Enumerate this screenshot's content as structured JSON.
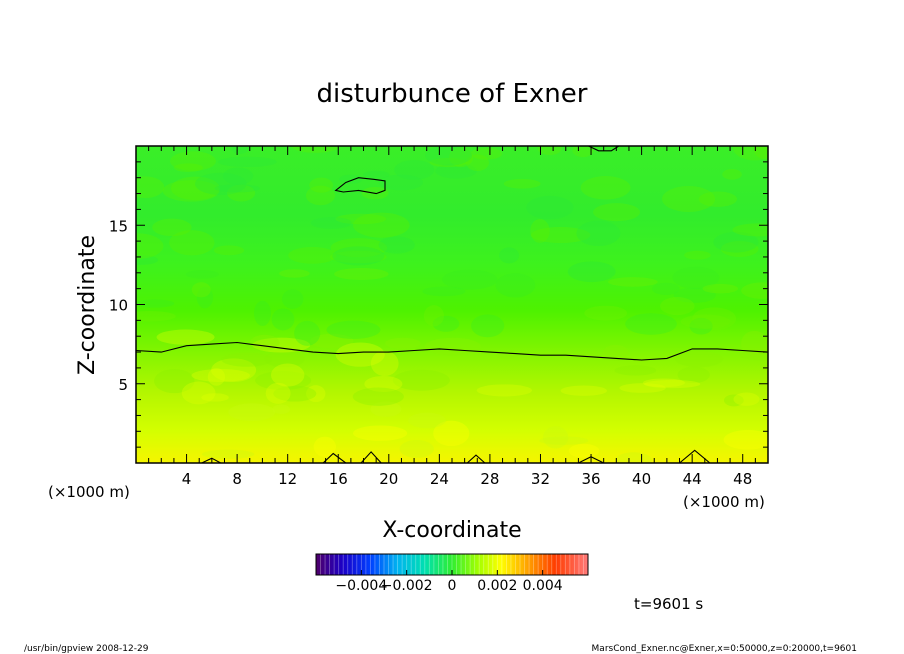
{
  "chart_data": {
    "type": "heatmap",
    "title": "disturbunce of Exner",
    "xlabel": "X-coordinate",
    "ylabel": "Z-coordinate",
    "x_unit_left": "(×1000 m)",
    "x_unit_right": "(×1000 m)",
    "xlim": [
      0,
      50
    ],
    "ylim": [
      0,
      20
    ],
    "x_ticks": [
      4,
      8,
      12,
      16,
      20,
      24,
      28,
      32,
      36,
      40,
      44,
      48
    ],
    "x_tick_labels": [
      "4",
      "8",
      "12",
      "16",
      "20",
      "24",
      "28",
      "32",
      "36",
      "40",
      "44",
      "48"
    ],
    "y_ticks": [
      5,
      10,
      15
    ],
    "y_tick_labels": [
      "5",
      "10",
      "15"
    ],
    "x_minor_step": 1,
    "y_minor_step": 1,
    "colorbar": {
      "min": -0.006,
      "max": 0.006,
      "tick_values": [
        -0.004,
        -0.002,
        0,
        0.002,
        0.004
      ],
      "tick_labels": [
        "−0.004",
        "−0.002",
        "0",
        "0.002",
        "0.004"
      ]
    },
    "contour_zero_line": {
      "x": [
        0,
        2,
        4,
        6,
        8,
        10,
        12,
        14,
        16,
        18,
        20,
        22,
        24,
        26,
        28,
        30,
        32,
        34,
        36,
        38,
        40,
        42,
        44,
        46,
        48,
        50
      ],
      "z": [
        7.1,
        7.0,
        7.4,
        7.5,
        7.6,
        7.4,
        7.2,
        7.0,
        6.9,
        7.0,
        7.0,
        7.1,
        7.2,
        7.1,
        7.0,
        6.9,
        6.8,
        6.8,
        6.7,
        6.6,
        6.5,
        6.6,
        7.2,
        7.2,
        7.1,
        7.0
      ]
    },
    "contour_upper_blob": {
      "x": [
        15.8,
        16.6,
        17.6,
        18.8,
        19.7,
        19.7,
        19.0,
        17.6,
        16.4,
        15.8
      ],
      "z": [
        17.2,
        17.7,
        18.0,
        17.9,
        17.8,
        17.2,
        17.0,
        17.2,
        17.1,
        17.2
      ]
    },
    "contour_top_arc": {
      "x": [
        35.8,
        36.6,
        37.6,
        38.2
      ],
      "z": [
        20.0,
        19.7,
        19.7,
        20.0
      ]
    },
    "contour_bottom_bumps": [
      {
        "x": [
          5.2,
          6.0,
          6.7
        ],
        "z": [
          0,
          0.3,
          0
        ]
      },
      {
        "x": [
          14.8,
          15.6,
          16.6
        ],
        "z": [
          0,
          0.6,
          0
        ]
      },
      {
        "x": [
          17.8,
          18.6,
          19.4
        ],
        "z": [
          0,
          0.7,
          0
        ]
      },
      {
        "x": [
          26.2,
          26.9,
          27.6
        ],
        "z": [
          0,
          0.5,
          0
        ]
      },
      {
        "x": [
          35.0,
          36.0,
          37.0
        ],
        "z": [
          0,
          0.4,
          0
        ]
      },
      {
        "x": [
          43.0,
          44.2,
          45.4
        ],
        "z": [
          0,
          0.8,
          0
        ]
      }
    ],
    "time_label": "t=9601 s",
    "footer_left": "/usr/bin/gpview   2008-12-29",
    "footer_right": "MarsCond_Exner.nc@Exner,x=0:50000,z=0:20000,t=9601"
  }
}
